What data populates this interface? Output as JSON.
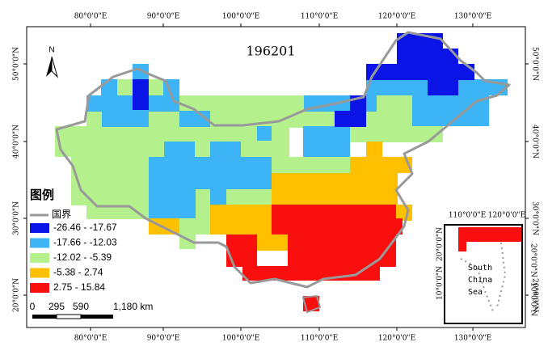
{
  "map": {
    "title": "196201",
    "lon_ticks": [
      "80°0'0\"E",
      "90°0'0\"E",
      "100°0'0\"E",
      "110°0'0\"E",
      "120°0'0\"E",
      "130°0'0\"E"
    ],
    "lat_ticks": [
      "50°0'0\"N",
      "40°0'0\"N",
      "30°0'0\"N",
      "20°0'0\"N"
    ],
    "legend": {
      "title": "图例",
      "boundary": "国界",
      "classes": [
        {
          "label": "-26.46 - -17.67",
          "color": "#0a14e6"
        },
        {
          "label": "-17.66 - -12.03",
          "color": "#3db4f5"
        },
        {
          "label": "-12.02 - -5.39",
          "color": "#b4f08c"
        },
        {
          "label": "-5.38 - 2.74",
          "color": "#ffc000"
        },
        {
          "label": "2.75 - 15.84",
          "color": "#fa0f0f"
        }
      ]
    },
    "scale_bar": [
      "0",
      "295",
      "590",
      "1,180 km"
    ],
    "inset": {
      "label": [
        "South",
        "China",
        "Sea"
      ],
      "lon_ticks": [
        "110°0'0\"E",
        "120°0'0\"E"
      ],
      "lat_ticks": [
        "20°0'0\"N",
        "10°0'0\"N"
      ]
    }
  }
}
